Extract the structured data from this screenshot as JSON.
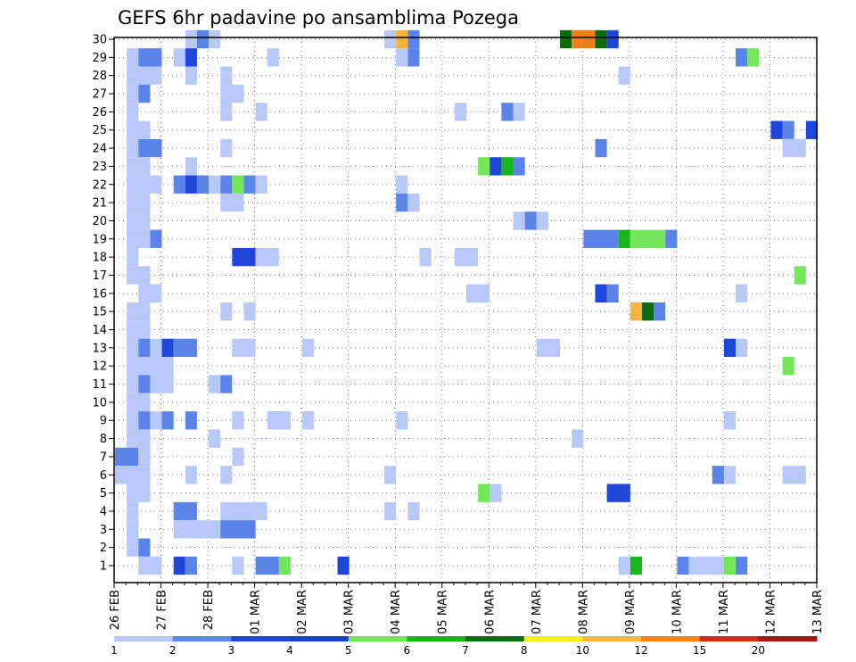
{
  "chart_data": {
    "type": "heatmap",
    "title": "GEFS 6hr padavine po ansamblima Pozega",
    "xlabel": "",
    "ylabel": "",
    "y_ticks": [
      "1",
      "2",
      "3",
      "4",
      "5",
      "6",
      "7",
      "8",
      "9",
      "10",
      "11",
      "12",
      "13",
      "14",
      "15",
      "16",
      "17",
      "18",
      "19",
      "20",
      "21",
      "22",
      "23",
      "24",
      "25",
      "26",
      "27",
      "28",
      "29",
      "30"
    ],
    "x_ticks": [
      "26 FEB",
      "27 FEB",
      "28 FEB",
      "01 MAR",
      "02 MAR",
      "03 MAR",
      "04 MAR",
      "05 MAR",
      "06 MAR",
      "07 MAR",
      "08 MAR",
      "09 MAR",
      "10 MAR",
      "11 MAR",
      "12 MAR",
      "13 MAR"
    ],
    "grid": true,
    "legend": {
      "position": "bottom",
      "labels": [
        "1",
        "2",
        "3",
        "4",
        "5",
        "6",
        "7",
        "8",
        "10",
        "12",
        "15",
        "20"
      ],
      "colors": [
        "#b8c8f8",
        "#5b84e8",
        "#1f46d9",
        "#1a3ecd",
        "#73e65a",
        "#19b619",
        "#0b6b12",
        "#f5f01e",
        "#f8b43e",
        "#f57f18",
        "#d42a18",
        "#a01813",
        "#6b0808"
      ]
    },
    "color_scale": {
      "1": "#b8c8f8",
      "2": "#5b84e8",
      "3": "#1f46d9",
      "5": "#73e65a",
      "6": "#19b619",
      "7": "#0b6b12",
      "10": "#f8b43e",
      "12": "#f57f18"
    },
    "time_steps": 60,
    "cells": [
      {
        "member": 30,
        "step": [
          6,
          7
        ],
        "value": 1
      },
      {
        "member": 30,
        "step": [
          7,
          8
        ],
        "value": 2
      },
      {
        "member": 30,
        "step": [
          8,
          9
        ],
        "value": 1
      },
      {
        "member": 30,
        "step": [
          23,
          24
        ],
        "value": 1
      },
      {
        "member": 30,
        "step": [
          24,
          25
        ],
        "value": 10
      },
      {
        "member": 30,
        "step": [
          25,
          26
        ],
        "value": 2
      },
      {
        "member": 30,
        "step": [
          38,
          39
        ],
        "value": 7
      },
      {
        "member": 30,
        "step": [
          39,
          41
        ],
        "value": 12
      },
      {
        "member": 30,
        "step": [
          41,
          42
        ],
        "value": 7
      },
      {
        "member": 30,
        "step": [
          42,
          43
        ],
        "value": 3
      },
      {
        "member": 29,
        "step": [
          1,
          2
        ],
        "value": 1
      },
      {
        "member": 29,
        "step": [
          2,
          4
        ],
        "value": 2
      },
      {
        "member": 29,
        "step": [
          5,
          6
        ],
        "value": 1
      },
      {
        "member": 29,
        "step": [
          6,
          7
        ],
        "value": 3
      },
      {
        "member": 29,
        "step": [
          13,
          14
        ],
        "value": 1
      },
      {
        "member": 29,
        "step": [
          24,
          25
        ],
        "value": 1
      },
      {
        "member": 29,
        "step": [
          25,
          26
        ],
        "value": 2
      },
      {
        "member": 29,
        "step": [
          53,
          54
        ],
        "value": 2
      },
      {
        "member": 29,
        "step": [
          54,
          55
        ],
        "value": 5
      },
      {
        "member": 28,
        "step": [
          1,
          4
        ],
        "value": 1
      },
      {
        "member": 28,
        "step": [
          6,
          7
        ],
        "value": 1
      },
      {
        "member": 28,
        "step": [
          9,
          10
        ],
        "value": 1
      },
      {
        "member": 28,
        "step": [
          43,
          44
        ],
        "value": 1
      },
      {
        "member": 27,
        "step": [
          1,
          2
        ],
        "value": 1
      },
      {
        "member": 27,
        "step": [
          2,
          3
        ],
        "value": 2
      },
      {
        "member": 27,
        "step": [
          9,
          11
        ],
        "value": 1
      },
      {
        "member": 26,
        "step": [
          1,
          2
        ],
        "value": 1
      },
      {
        "member": 26,
        "step": [
          9,
          10
        ],
        "value": 1
      },
      {
        "member": 26,
        "step": [
          12,
          13
        ],
        "value": 1
      },
      {
        "member": 26,
        "step": [
          29,
          30
        ],
        "value": 1
      },
      {
        "member": 26,
        "step": [
          33,
          34
        ],
        "value": 2
      },
      {
        "member": 26,
        "step": [
          34,
          35
        ],
        "value": 1
      },
      {
        "member": 25,
        "step": [
          1,
          3
        ],
        "value": 1
      },
      {
        "member": 25,
        "step": [
          56,
          57
        ],
        "value": 3
      },
      {
        "member": 25,
        "step": [
          57,
          58
        ],
        "value": 2
      },
      {
        "member": 25,
        "step": [
          59,
          60
        ],
        "value": 3
      },
      {
        "member": 24,
        "step": [
          1,
          2
        ],
        "value": 1
      },
      {
        "member": 24,
        "step": [
          2,
          4
        ],
        "value": 2
      },
      {
        "member": 24,
        "step": [
          9,
          10
        ],
        "value": 1
      },
      {
        "member": 24,
        "step": [
          41,
          42
        ],
        "value": 2
      },
      {
        "member": 24,
        "step": [
          57,
          59
        ],
        "value": 1
      },
      {
        "member": 23,
        "step": [
          1,
          3
        ],
        "value": 1
      },
      {
        "member": 23,
        "step": [
          6,
          7
        ],
        "value": 1
      },
      {
        "member": 23,
        "step": [
          31,
          32
        ],
        "value": 5
      },
      {
        "member": 23,
        "step": [
          32,
          33
        ],
        "value": 3
      },
      {
        "member": 23,
        "step": [
          33,
          34
        ],
        "value": 6
      },
      {
        "member": 23,
        "step": [
          34,
          35
        ],
        "value": 2
      },
      {
        "member": 22,
        "step": [
          1,
          4
        ],
        "value": 1
      },
      {
        "member": 22,
        "step": [
          5,
          6
        ],
        "value": 2
      },
      {
        "member": 22,
        "step": [
          6,
          7
        ],
        "value": 3
      },
      {
        "member": 22,
        "step": [
          7,
          8
        ],
        "value": 2
      },
      {
        "member": 22,
        "step": [
          8,
          9
        ],
        "value": 1
      },
      {
        "member": 22,
        "step": [
          9,
          10
        ],
        "value": 2
      },
      {
        "member": 22,
        "step": [
          10,
          11
        ],
        "value": 5
      },
      {
        "member": 22,
        "step": [
          11,
          12
        ],
        "value": 2
      },
      {
        "member": 22,
        "step": [
          12,
          13
        ],
        "value": 1
      },
      {
        "member": 22,
        "step": [
          24,
          25
        ],
        "value": 1
      },
      {
        "member": 21,
        "step": [
          1,
          3
        ],
        "value": 1
      },
      {
        "member": 21,
        "step": [
          9,
          11
        ],
        "value": 1
      },
      {
        "member": 21,
        "step": [
          24,
          25
        ],
        "value": 2
      },
      {
        "member": 21,
        "step": [
          25,
          26
        ],
        "value": 1
      },
      {
        "member": 20,
        "step": [
          1,
          3
        ],
        "value": 1
      },
      {
        "member": 20,
        "step": [
          34,
          35
        ],
        "value": 1
      },
      {
        "member": 20,
        "step": [
          35,
          36
        ],
        "value": 2
      },
      {
        "member": 20,
        "step": [
          36,
          37
        ],
        "value": 1
      },
      {
        "member": 19,
        "step": [
          1,
          3
        ],
        "value": 1
      },
      {
        "member": 19,
        "step": [
          3,
          4
        ],
        "value": 2
      },
      {
        "member": 19,
        "step": [
          40,
          43
        ],
        "value": 2
      },
      {
        "member": 19,
        "step": [
          43,
          44
        ],
        "value": 6
      },
      {
        "member": 19,
        "step": [
          44,
          47
        ],
        "value": 5
      },
      {
        "member": 19,
        "step": [
          47,
          48
        ],
        "value": 2
      },
      {
        "member": 18,
        "step": [
          1,
          2
        ],
        "value": 1
      },
      {
        "member": 18,
        "step": [
          10,
          12
        ],
        "value": 3
      },
      {
        "member": 18,
        "step": [
          12,
          14
        ],
        "value": 1
      },
      {
        "member": 18,
        "step": [
          26,
          27
        ],
        "value": 1
      },
      {
        "member": 18,
        "step": [
          29,
          31
        ],
        "value": 1
      },
      {
        "member": 17,
        "step": [
          1,
          3
        ],
        "value": 1
      },
      {
        "member": 17,
        "step": [
          58,
          59
        ],
        "value": 5
      },
      {
        "member": 16,
        "step": [
          2,
          4
        ],
        "value": 1
      },
      {
        "member": 16,
        "step": [
          30,
          32
        ],
        "value": 1
      },
      {
        "member": 16,
        "step": [
          41,
          42
        ],
        "value": 3
      },
      {
        "member": 16,
        "step": [
          42,
          43
        ],
        "value": 2
      },
      {
        "member": 16,
        "step": [
          53,
          54
        ],
        "value": 1
      },
      {
        "member": 15,
        "step": [
          1,
          3
        ],
        "value": 1
      },
      {
        "member": 15,
        "step": [
          9,
          10
        ],
        "value": 1
      },
      {
        "member": 15,
        "step": [
          11,
          12
        ],
        "value": 1
      },
      {
        "member": 15,
        "step": [
          44,
          45
        ],
        "value": 10
      },
      {
        "member": 15,
        "step": [
          45,
          46
        ],
        "value": 7
      },
      {
        "member": 15,
        "step": [
          46,
          47
        ],
        "value": 2
      },
      {
        "member": 14,
        "step": [
          1,
          3
        ],
        "value": 1
      },
      {
        "member": 13,
        "step": [
          1,
          2
        ],
        "value": 1
      },
      {
        "member": 13,
        "step": [
          2,
          3
        ],
        "value": 2
      },
      {
        "member": 13,
        "step": [
          3,
          4
        ],
        "value": 1
      },
      {
        "member": 13,
        "step": [
          4,
          5
        ],
        "value": 3
      },
      {
        "member": 13,
        "step": [
          5,
          7
        ],
        "value": 2
      },
      {
        "member": 13,
        "step": [
          10,
          12
        ],
        "value": 1
      },
      {
        "member": 13,
        "step": [
          16,
          17
        ],
        "value": 1
      },
      {
        "member": 13,
        "step": [
          36,
          38
        ],
        "value": 1
      },
      {
        "member": 13,
        "step": [
          52,
          53
        ],
        "value": 3
      },
      {
        "member": 13,
        "step": [
          53,
          54
        ],
        "value": 1
      },
      {
        "member": 12,
        "step": [
          1,
          5
        ],
        "value": 1
      },
      {
        "member": 12,
        "step": [
          57,
          58
        ],
        "value": 5
      },
      {
        "member": 11,
        "step": [
          1,
          2
        ],
        "value": 1
      },
      {
        "member": 11,
        "step": [
          2,
          3
        ],
        "value": 2
      },
      {
        "member": 11,
        "step": [
          3,
          5
        ],
        "value": 1
      },
      {
        "member": 11,
        "step": [
          8,
          9
        ],
        "value": 1
      },
      {
        "member": 11,
        "step": [
          9,
          10
        ],
        "value": 2
      },
      {
        "member": 10,
        "step": [
          1,
          3
        ],
        "value": 1
      },
      {
        "member": 9,
        "step": [
          1,
          2
        ],
        "value": 1
      },
      {
        "member": 9,
        "step": [
          2,
          3
        ],
        "value": 2
      },
      {
        "member": 9,
        "step": [
          3,
          4
        ],
        "value": 1
      },
      {
        "member": 9,
        "step": [
          4,
          5
        ],
        "value": 2
      },
      {
        "member": 9,
        "step": [
          6,
          7
        ],
        "value": 2
      },
      {
        "member": 9,
        "step": [
          10,
          11
        ],
        "value": 1
      },
      {
        "member": 9,
        "step": [
          13,
          15
        ],
        "value": 1
      },
      {
        "member": 9,
        "step": [
          16,
          17
        ],
        "value": 1
      },
      {
        "member": 9,
        "step": [
          24,
          25
        ],
        "value": 1
      },
      {
        "member": 9,
        "step": [
          52,
          53
        ],
        "value": 1
      },
      {
        "member": 8,
        "step": [
          1,
          3
        ],
        "value": 1
      },
      {
        "member": 8,
        "step": [
          8,
          9
        ],
        "value": 1
      },
      {
        "member": 8,
        "step": [
          39,
          40
        ],
        "value": 1
      },
      {
        "member": 7,
        "step": [
          0,
          2
        ],
        "value": 2
      },
      {
        "member": 7,
        "step": [
          2,
          3
        ],
        "value": 1
      },
      {
        "member": 7,
        "step": [
          10,
          11
        ],
        "value": 1
      },
      {
        "member": 6,
        "step": [
          0,
          3
        ],
        "value": 1
      },
      {
        "member": 6,
        "step": [
          6,
          7
        ],
        "value": 1
      },
      {
        "member": 6,
        "step": [
          9,
          10
        ],
        "value": 1
      },
      {
        "member": 6,
        "step": [
          23,
          24
        ],
        "value": 1
      },
      {
        "member": 6,
        "step": [
          51,
          52
        ],
        "value": 2
      },
      {
        "member": 6,
        "step": [
          52,
          53
        ],
        "value": 1
      },
      {
        "member": 6,
        "step": [
          57,
          59
        ],
        "value": 1
      },
      {
        "member": 5,
        "step": [
          1,
          3
        ],
        "value": 1
      },
      {
        "member": 5,
        "step": [
          31,
          32
        ],
        "value": 5
      },
      {
        "member": 5,
        "step": [
          32,
          33
        ],
        "value": 1
      },
      {
        "member": 5,
        "step": [
          42,
          44
        ],
        "value": 3
      },
      {
        "member": 4,
        "step": [
          1,
          2
        ],
        "value": 1
      },
      {
        "member": 4,
        "step": [
          5,
          7
        ],
        "value": 2
      },
      {
        "member": 4,
        "step": [
          9,
          11
        ],
        "value": 1
      },
      {
        "member": 4,
        "step": [
          11,
          13
        ],
        "value": 1
      },
      {
        "member": 4,
        "step": [
          23,
          24
        ],
        "value": 1
      },
      {
        "member": 4,
        "step": [
          25,
          26
        ],
        "value": 1
      },
      {
        "member": 3,
        "step": [
          1,
          2
        ],
        "value": 1
      },
      {
        "member": 3,
        "step": [
          5,
          9
        ],
        "value": 1
      },
      {
        "member": 3,
        "step": [
          9,
          12
        ],
        "value": 2
      },
      {
        "member": 2,
        "step": [
          1,
          2
        ],
        "value": 1
      },
      {
        "member": 2,
        "step": [
          2,
          3
        ],
        "value": 2
      },
      {
        "member": 1,
        "step": [
          2,
          4
        ],
        "value": 1
      },
      {
        "member": 1,
        "step": [
          5,
          6
        ],
        "value": 3
      },
      {
        "member": 1,
        "step": [
          6,
          7
        ],
        "value": 2
      },
      {
        "member": 1,
        "step": [
          10,
          11
        ],
        "value": 1
      },
      {
        "member": 1,
        "step": [
          12,
          14
        ],
        "value": 2
      },
      {
        "member": 1,
        "step": [
          14,
          15
        ],
        "value": 5
      },
      {
        "member": 1,
        "step": [
          19,
          20
        ],
        "value": 3
      },
      {
        "member": 1,
        "step": [
          43,
          44
        ],
        "value": 1
      },
      {
        "member": 1,
        "step": [
          44,
          45
        ],
        "value": 6
      },
      {
        "member": 1,
        "step": [
          48,
          49
        ],
        "value": 2
      },
      {
        "member": 1,
        "step": [
          49,
          52
        ],
        "value": 1
      },
      {
        "member": 1,
        "step": [
          52,
          53
        ],
        "value": 5
      },
      {
        "member": 1,
        "step": [
          53,
          54
        ],
        "value": 2
      }
    ]
  }
}
